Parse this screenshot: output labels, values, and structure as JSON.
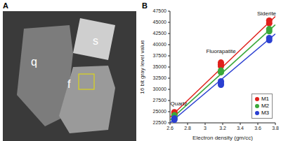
{
  "image": {
    "label": "A",
    "grains": [
      "q",
      "s",
      "f"
    ]
  },
  "chart_data": {
    "type": "scatter",
    "title": "B",
    "x_label": "Electron density (gm/cc)",
    "y_label": "16 bit gray level value",
    "xlim": [
      2.6,
      3.8
    ],
    "xticks": [
      2.6,
      2.8,
      3,
      3.2,
      3.4,
      3.6,
      3.8
    ],
    "ylim": [
      22500,
      47500
    ],
    "yticks": [
      22500,
      25000,
      27500,
      30000,
      32500,
      35000,
      37500,
      40000,
      42500,
      45000,
      47500
    ],
    "grid": false,
    "legend": "lower right",
    "marker": "circle",
    "series": [
      {
        "name": "M1",
        "color": "#e0201b",
        "x": [
          2.65,
          2.65,
          3.18,
          3.18,
          3.18,
          3.73,
          3.73
        ],
        "values": [
          24500,
          24900,
          35200,
          35600,
          36000,
          44800,
          45400
        ],
        "fit": {
          "x": [
            2.6,
            3.8
          ],
          "values": [
            23760,
            46320
          ]
        }
      },
      {
        "name": "M2",
        "color": "#3aa83a",
        "x": [
          2.65,
          2.65,
          3.18,
          3.18,
          3.73,
          3.73
        ],
        "values": [
          23800,
          24200,
          33800,
          34200,
          43000,
          43500
        ],
        "fit": {
          "x": [
            2.6,
            3.8
          ],
          "values": [
            23110,
            44470
          ]
        }
      },
      {
        "name": "M3",
        "color": "#2a3fd1",
        "x": [
          2.65,
          2.65,
          3.18,
          3.18,
          3.18,
          3.73,
          3.73
        ],
        "values": [
          23200,
          23500,
          31000,
          31400,
          31800,
          41000,
          41500
        ],
        "fit": {
          "x": [
            2.6,
            3.8
          ],
          "values": [
            22520,
            42400
          ]
        }
      }
    ],
    "annotations": [
      {
        "text": "Siderite",
        "x": 3.7,
        "y": 47000
      },
      {
        "text": "Fluorapatite",
        "x": 3.18,
        "y": 38500
      },
      {
        "text": "Quartz",
        "x": 2.7,
        "y": 26800
      }
    ]
  }
}
